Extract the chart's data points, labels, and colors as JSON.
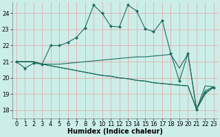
{
  "xlabel": "Humidex (Indice chaleur)",
  "bg_color": "#cceee8",
  "grid_color": "#e8a0a0",
  "line_color": "#1a6b5e",
  "ylim": [
    17.5,
    24.7
  ],
  "xlim": [
    -0.5,
    23.5
  ],
  "yticks": [
    18,
    19,
    20,
    21,
    22,
    23,
    24
  ],
  "xticks": [
    0,
    1,
    2,
    3,
    4,
    5,
    6,
    7,
    8,
    9,
    10,
    11,
    12,
    13,
    14,
    15,
    16,
    17,
    18,
    19,
    20,
    21,
    22,
    23
  ],
  "series": [
    [
      21.0,
      20.6,
      20.9,
      20.85,
      22.0,
      22.0,
      22.2,
      22.5,
      23.1,
      24.5,
      24.0,
      23.2,
      23.15,
      24.5,
      24.15,
      23.05,
      22.85,
      23.55,
      21.5,
      19.8,
      21.5,
      18.05,
      19.1,
      19.4
    ],
    [
      21.0,
      21.0,
      21.0,
      20.85,
      20.85,
      20.85,
      20.9,
      20.95,
      21.0,
      21.05,
      21.1,
      21.15,
      21.2,
      21.25,
      21.3,
      21.3,
      21.35,
      21.4,
      21.45,
      20.6,
      21.5,
      18.05,
      19.5,
      19.45
    ],
    [
      21.0,
      21.0,
      21.0,
      20.85,
      20.75,
      20.65,
      20.55,
      20.45,
      20.35,
      20.25,
      20.15,
      20.1,
      20.0,
      19.95,
      19.85,
      19.8,
      19.7,
      19.65,
      19.6,
      19.55,
      19.5,
      18.05,
      19.2,
      19.45
    ],
    [
      21.0,
      21.0,
      21.0,
      20.85,
      20.75,
      20.65,
      20.55,
      20.45,
      20.35,
      20.25,
      20.15,
      20.1,
      20.0,
      19.95,
      19.85,
      19.8,
      19.7,
      19.65,
      19.6,
      19.55,
      19.5,
      18.05,
      19.0,
      19.45
    ]
  ],
  "marker_series": [
    0
  ],
  "xlabel_fontsize": 7,
  "tick_fontsize": 6,
  "linewidth": 0.8,
  "markersize": 2.2
}
